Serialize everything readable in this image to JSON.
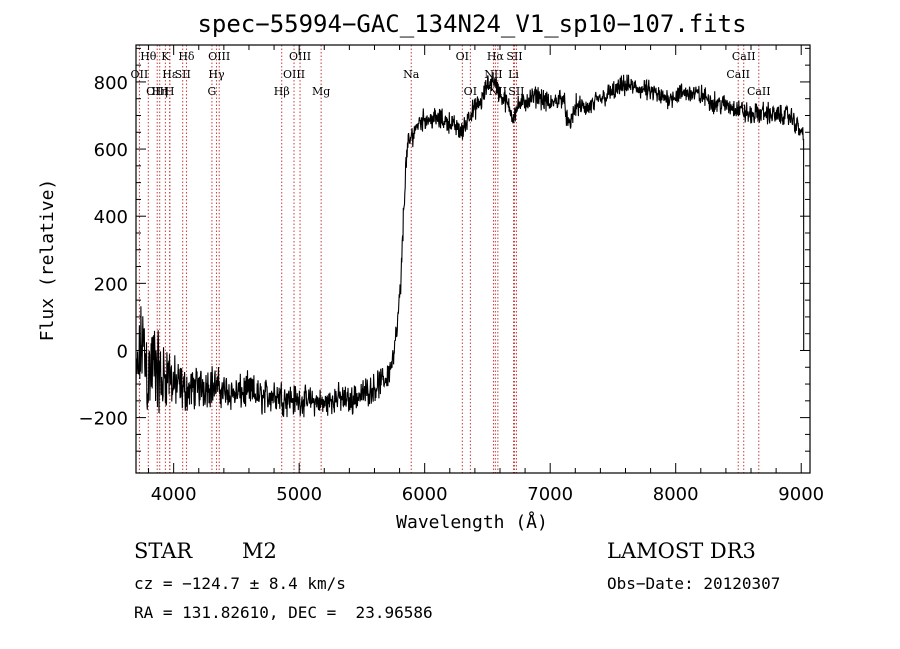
{
  "chart_data": {
    "type": "line",
    "title": "spec−55994−GAC_134N24_V1_sp10−107.fits",
    "xlabel": "Wavelength (Å)",
    "ylabel": "Flux (relative)",
    "xlim": [
      3700,
      9070
    ],
    "ylim": [
      -365,
      910
    ],
    "xticks": [
      4000,
      5000,
      6000,
      7000,
      8000,
      9000
    ],
    "xtick_labels": [
      "4000",
      "5000",
      "6000",
      "7000",
      "8000",
      "9000"
    ],
    "yticks": [
      -200,
      0,
      200,
      400,
      600,
      800
    ],
    "ytick_labels": [
      "−200",
      "0",
      "200",
      "400",
      "600",
      "800"
    ],
    "spectrum": {
      "wavelength": [
        3700,
        3750,
        3800,
        3850,
        3900,
        3950,
        4000,
        4100,
        4200,
        4300,
        4400,
        4500,
        4600,
        4700,
        4800,
        4900,
        5000,
        5100,
        5200,
        5300,
        5400,
        5500,
        5600,
        5700,
        5750,
        5780,
        5810,
        5840,
        5860,
        5880,
        5900,
        5950,
        6000,
        6100,
        6200,
        6300,
        6350,
        6400,
        6450,
        6500,
        6550,
        6600,
        6650,
        6700,
        6750,
        6800,
        6900,
        7000,
        7100,
        7150,
        7200,
        7300,
        7400,
        7500,
        7600,
        7700,
        7800,
        7900,
        8000,
        8100,
        8200,
        8300,
        8400,
        8500,
        8600,
        8700,
        8800,
        8900,
        8950,
        9000,
        9020
      ],
      "flux": [
        -100,
        30,
        -80,
        -30,
        -100,
        -60,
        -100,
        -120,
        -110,
        -100,
        -120,
        -130,
        -120,
        -140,
        -130,
        -140,
        -150,
        -150,
        -160,
        -140,
        -150,
        -130,
        -110,
        -80,
        -20,
        60,
        200,
        480,
        600,
        620,
        640,
        680,
        690,
        690,
        680,
        650,
        700,
        720,
        740,
        790,
        810,
        760,
        740,
        700,
        730,
        740,
        760,
        730,
        760,
        660,
        730,
        720,
        750,
        770,
        790,
        780,
        770,
        750,
        760,
        770,
        760,
        740,
        730,
        720,
        700,
        710,
        700,
        700,
        680,
        650,
        640
      ],
      "noise": [
        80,
        140,
        150,
        130,
        120,
        90,
        80,
        60,
        60,
        60,
        50,
        50,
        50,
        50,
        50,
        50,
        40,
        40,
        40,
        40,
        40,
        40,
        40,
        40,
        40,
        40,
        40,
        40,
        40,
        30,
        30,
        30,
        30,
        30,
        30,
        30,
        30,
        30,
        30,
        30,
        30,
        30,
        30,
        30,
        30,
        30,
        30,
        30,
        30,
        30,
        30,
        30,
        30,
        30,
        30,
        30,
        30,
        30,
        30,
        30,
        30,
        30,
        30,
        30,
        30,
        30,
        30,
        30,
        30,
        30,
        30
      ]
    },
    "line_markers": [
      {
        "label": "Hθ",
        "wavelength": 3798,
        "row": 0
      },
      {
        "label": "OII",
        "wavelength": 3727,
        "row": 1
      },
      {
        "label": "OIII",
        "wavelength": 3869,
        "row": 2
      },
      {
        "label": "K",
        "wavelength": 3934,
        "row": 0
      },
      {
        "label": "Hε",
        "wavelength": 3970,
        "row": 1
      },
      {
        "label": "Hη",
        "wavelength": 3889,
        "row": 2
      },
      {
        "label": "H",
        "wavelength": 3968,
        "row": 2
      },
      {
        "label": "Hδ",
        "wavelength": 4102,
        "row": 0
      },
      {
        "label": "SII",
        "wavelength": 4072,
        "row": 1
      },
      {
        "label": "OIII",
        "wavelength": 4363,
        "row": 0
      },
      {
        "label": "Hγ",
        "wavelength": 4341,
        "row": 1
      },
      {
        "label": "G",
        "wavelength": 4305,
        "row": 2
      },
      {
        "label": "OIII",
        "wavelength": 5007,
        "row": 0
      },
      {
        "label": "OIII",
        "wavelength": 4959,
        "row": 1
      },
      {
        "label": "Hβ",
        "wavelength": 4861,
        "row": 2
      },
      {
        "label": "Mg",
        "wavelength": 5175,
        "row": 2
      },
      {
        "label": "Na",
        "wavelength": 5893,
        "row": 1
      },
      {
        "label": "OI",
        "wavelength": 6300,
        "row": 0
      },
      {
        "label": "OI",
        "wavelength": 6364,
        "row": 2
      },
      {
        "label": "Hα",
        "wavelength": 6563,
        "row": 0
      },
      {
        "label": "NII",
        "wavelength": 6548,
        "row": 1
      },
      {
        "label": "NII",
        "wavelength": 6583,
        "row": 2
      },
      {
        "label": "SII",
        "wavelength": 6716,
        "row": 0
      },
      {
        "label": "Li",
        "wavelength": 6708,
        "row": 1
      },
      {
        "label": "SII",
        "wavelength": 6731,
        "row": 2
      },
      {
        "label": "CaII",
        "wavelength": 8542,
        "row": 0
      },
      {
        "label": "CaII",
        "wavelength": 8498,
        "row": 1
      },
      {
        "label": "CaII",
        "wavelength": 8662,
        "row": 2
      }
    ]
  },
  "info": {
    "class": "STAR",
    "subclass": "M2",
    "survey": "LAMOST DR3",
    "cz": "cz = −124.7 ± 8.4 km/s",
    "obs_date": "Obs−Date: 20120307",
    "coords": "RA = 131.82610, DEC =  23.96586"
  },
  "colors": {
    "line": "#000000",
    "marker": "#c83c3c"
  }
}
